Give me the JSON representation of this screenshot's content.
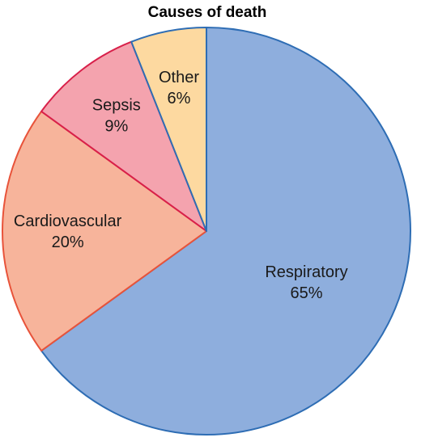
{
  "chart_data": {
    "type": "pie",
    "title": "Causes of death",
    "slices": [
      {
        "label": "Respiratory",
        "value": 65,
        "value_label": "65%",
        "fill": "#8EAEDD",
        "stroke": "#2E6DB4"
      },
      {
        "label": "Cardiovascular",
        "value": 20,
        "value_label": "20%",
        "fill": "#F7B49B",
        "stroke": "#E8533A"
      },
      {
        "label": "Sepsis",
        "value": 9,
        "value_label": "9%",
        "fill": "#F4A3AE",
        "stroke": "#D8204A"
      },
      {
        "label": "Other",
        "value": 6,
        "value_label": "6%",
        "fill": "#FDD9A0",
        "stroke": "#2E6DB4"
      }
    ],
    "start": "12 o'clock",
    "direction": "clockwise",
    "legend": "none"
  }
}
